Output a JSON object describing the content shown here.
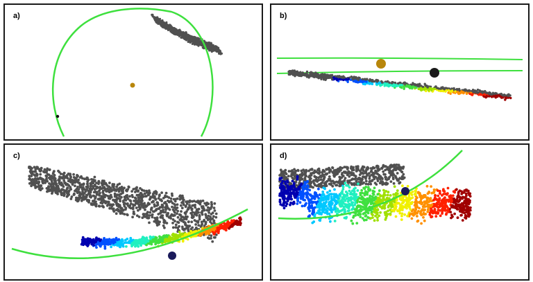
{
  "panels": [
    {
      "label": "a)"
    },
    {
      "label": "b)"
    },
    {
      "label": "c)"
    },
    {
      "label": "d)"
    }
  ],
  "colors": {
    "border": "#1a1a1a",
    "orbit": "#3ee03e",
    "unreached": "#505050",
    "sun": "#b8860b",
    "body": "#111111",
    "target": "#1a1a5a",
    "jet": [
      "#0000b0",
      "#0050ff",
      "#00c8ff",
      "#20f0c0",
      "#40e040",
      "#a0e000",
      "#f0f000",
      "#ff9000",
      "#ff2000",
      "#a00000"
    ]
  }
}
